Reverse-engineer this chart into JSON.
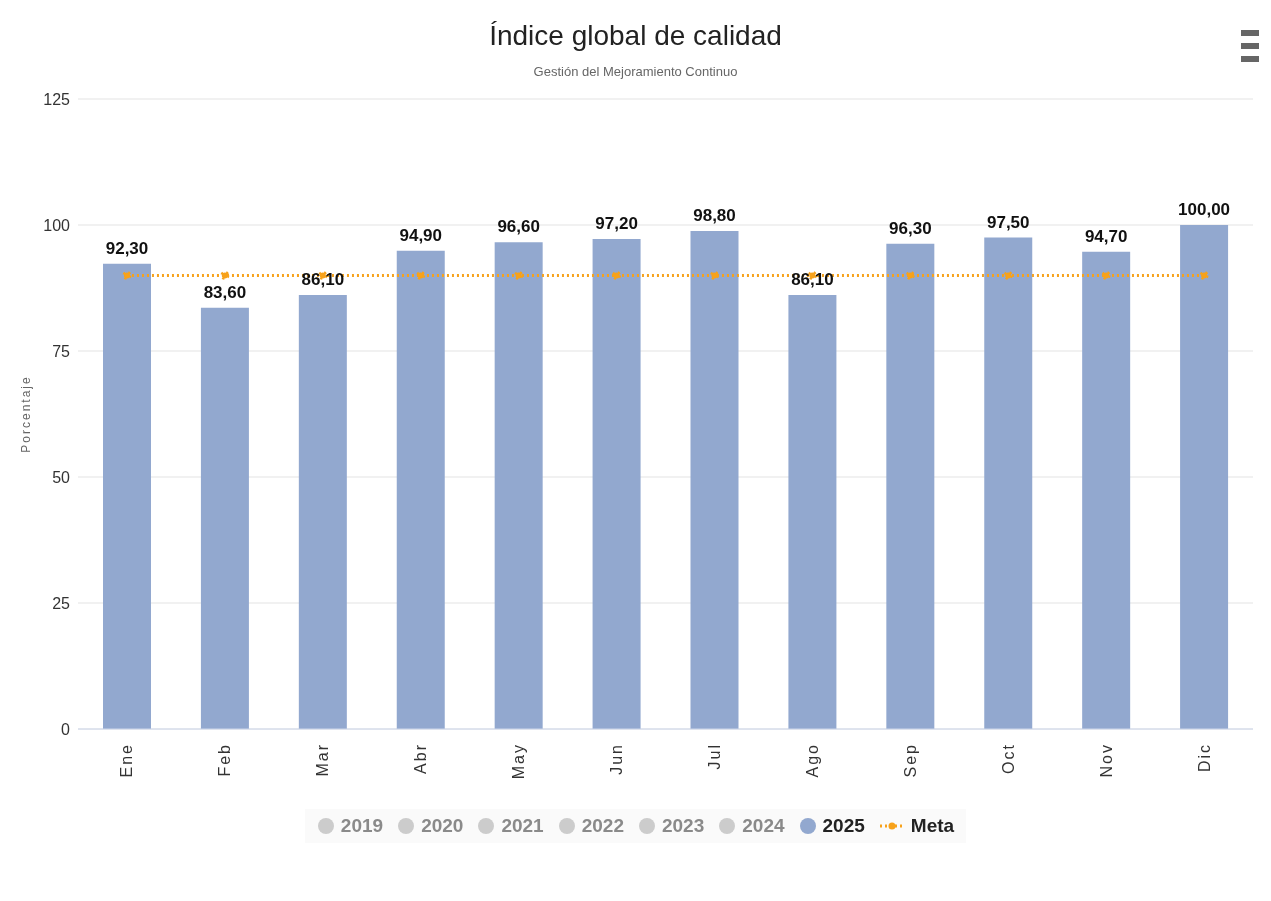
{
  "chart_data": {
    "type": "bar",
    "title": "Índice global de calidad",
    "subtitle": "Gestión del Mejoramiento Continuo",
    "ylabel": "Porcentaje",
    "categories": [
      "Ene",
      "Feb",
      "Mar",
      "Abr",
      "May",
      "Jun",
      "Jul",
      "Ago",
      "Sep",
      "Oct",
      "Nov",
      "Dic"
    ],
    "series": [
      {
        "name": "2019",
        "color": "#cccccc",
        "values": [
          null,
          null,
          null,
          null,
          null,
          null,
          null,
          null,
          null,
          null,
          null,
          null
        ]
      },
      {
        "name": "2020",
        "color": "#cccccc",
        "values": [
          null,
          null,
          null,
          null,
          null,
          null,
          null,
          null,
          null,
          null,
          null,
          null
        ]
      },
      {
        "name": "2021",
        "color": "#cccccc",
        "values": [
          null,
          null,
          null,
          null,
          null,
          null,
          null,
          null,
          null,
          null,
          null,
          null
        ]
      },
      {
        "name": "2022",
        "color": "#cccccc",
        "values": [
          null,
          null,
          null,
          null,
          null,
          null,
          null,
          null,
          null,
          null,
          null,
          null
        ]
      },
      {
        "name": "2023",
        "color": "#cccccc",
        "values": [
          null,
          null,
          null,
          null,
          null,
          null,
          null,
          null,
          null,
          null,
          null,
          null
        ]
      },
      {
        "name": "2024",
        "color": "#cccccc",
        "values": [
          null,
          null,
          null,
          null,
          null,
          null,
          null,
          null,
          null,
          null,
          null,
          null
        ]
      },
      {
        "name": "2025",
        "color": "#92a8cf",
        "values": [
          92.3,
          83.6,
          86.1,
          94.9,
          96.6,
          97.2,
          98.8,
          86.1,
          96.3,
          97.5,
          94.7,
          100
        ],
        "value_labels": [
          "92,30",
          "83,60",
          "86,10",
          "94,90",
          "96,60",
          "97,20",
          "98,80",
          "86,10",
          "96,30",
          "97,50",
          "94,70",
          "100,00"
        ]
      },
      {
        "name": "Meta",
        "type": "line",
        "color": "#f7a21b",
        "line_style": "dotted",
        "marker": "circle",
        "values": [
          90,
          90,
          90,
          90,
          90,
          90,
          90,
          90,
          90,
          90,
          90,
          90
        ]
      }
    ],
    "ylim": [
      0,
      125
    ],
    "yticks": [
      0,
      25,
      50,
      75,
      100,
      125
    ],
    "grid": "y",
    "legend": "bottom"
  }
}
